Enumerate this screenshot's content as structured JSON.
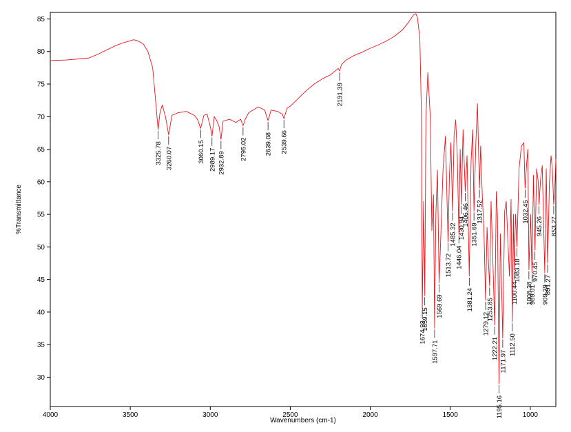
{
  "chart_data": {
    "type": "line",
    "xlabel": "Wavenumbers (cm-1)",
    "ylabel": "%Transmittance",
    "xlim": [
      4000,
      840
    ],
    "x_reversed": true,
    "ylim": [
      25.5,
      86
    ],
    "grid": false,
    "line_color": "#e8141b",
    "xticks": [
      "4000",
      "3500",
      "3000",
      "2500",
      "2000",
      "1500",
      "1000"
    ],
    "xtick_values": [
      4000,
      3500,
      3000,
      2500,
      2000,
      1500,
      1000
    ],
    "yticks": [
      "30",
      "35",
      "40",
      "45",
      "50",
      "55",
      "60",
      "65",
      "70",
      "75",
      "80",
      "85"
    ],
    "ytick_values": [
      30,
      35,
      40,
      45,
      50,
      55,
      60,
      65,
      70,
      75,
      80,
      85
    ],
    "spectrum": {
      "x": [
        4000,
        3900,
        3800,
        3760,
        3700,
        3650,
        3600,
        3550,
        3520,
        3480,
        3460,
        3420,
        3390,
        3360,
        3340,
        3325.78,
        3315,
        3300,
        3280,
        3260.07,
        3240,
        3200,
        3150,
        3100,
        3080,
        3060.15,
        3040,
        3020,
        3000,
        2989.17,
        2975,
        2960,
        2945,
        2932.89,
        2920,
        2880,
        2840,
        2810,
        2795.02,
        2780,
        2760,
        2700,
        2660,
        2639.08,
        2620,
        2580,
        2550,
        2539.66,
        2520,
        2500,
        2450,
        2400,
        2350,
        2300,
        2250,
        2200,
        2191.39,
        2180,
        2150,
        2100,
        2050,
        2000,
        1950,
        1900,
        1850,
        1800,
        1760,
        1730,
        1715,
        1705,
        1690,
        1680,
        1674.93,
        1666,
        1659.15,
        1652,
        1640,
        1625,
        1615,
        1605,
        1597.71,
        1590,
        1580,
        1569.69,
        1560,
        1545,
        1530,
        1513.72,
        1505,
        1496,
        1485.32,
        1476,
        1466,
        1456,
        1446.04,
        1438,
        1430.94,
        1420,
        1406.46,
        1395,
        1381.24,
        1370,
        1360,
        1351.69,
        1340,
        1330,
        1317.52,
        1310,
        1300,
        1290,
        1279.12,
        1270,
        1262,
        1253.85,
        1245,
        1235,
        1222.21,
        1212,
        1205,
        1195.16,
        1187,
        1180,
        1171.97,
        1160,
        1150,
        1140,
        1130,
        1120,
        1112.5,
        1105,
        1100.44,
        1092,
        1083.18,
        1070,
        1055,
        1040,
        1032.45,
        1022,
        1015,
        1008.38,
        998,
        989.01,
        980,
        970.45,
        960,
        950,
        945.26,
        935,
        925,
        909.29,
        900,
        891.27,
        880,
        870,
        862,
        853.27,
        845,
        840
      ],
      "y": [
        78.6,
        78.7,
        78.9,
        79.0,
        79.6,
        80.2,
        80.8,
        81.3,
        81.5,
        81.8,
        81.7,
        81.2,
        80.0,
        77.5,
        72.0,
        68.0,
        70.5,
        71.8,
        70.0,
        67.2,
        70.2,
        70.6,
        70.8,
        70.2,
        69.6,
        68.2,
        70.2,
        70.4,
        68.5,
        67.0,
        70.0,
        69.4,
        68.5,
        66.5,
        69.3,
        69.6,
        69.1,
        69.6,
        68.6,
        69.7,
        70.6,
        71.5,
        71.0,
        69.4,
        71.0,
        70.8,
        70.4,
        69.7,
        71.3,
        71.6,
        72.8,
        74.0,
        75.0,
        75.8,
        76.4,
        77.4,
        77.0,
        78.0,
        78.7,
        79.4,
        79.9,
        80.5,
        81.0,
        81.6,
        82.3,
        83.3,
        84.5,
        85.6,
        85.8,
        85.2,
        82.0,
        70.0,
        40.5,
        57.0,
        42.5,
        70.0,
        76.8,
        70.0,
        52.5,
        58.0,
        37.5,
        55.0,
        61.8,
        44.5,
        51.0,
        62.0,
        67.0,
        50.8,
        61.0,
        66.0,
        55.5,
        67.2,
        69.5,
        64.0,
        52.0,
        65.0,
        56.5,
        68.0,
        58.5,
        64.0,
        45.5,
        63.0,
        68.0,
        55.5,
        66.0,
        72.0,
        59.0,
        65.5,
        58.0,
        53.0,
        41.8,
        53.0,
        48.0,
        44.0,
        57.0,
        49.0,
        38.0,
        58.5,
        55.0,
        29.0,
        52.0,
        45.0,
        36.0,
        55.5,
        57.0,
        51.0,
        45.5,
        57.3,
        38.5,
        55.0,
        46.5,
        55.0,
        50.0,
        62.0,
        65.5,
        66.0,
        59.0,
        63.0,
        65.0,
        46.5,
        55.0,
        46.0,
        61.0,
        49.5,
        62.0,
        60.0,
        56.5,
        60.5,
        62.5,
        46.0,
        62.0,
        47.5,
        60.0,
        64.0,
        62.0,
        56.5,
        60.0,
        63.5
      ]
    },
    "peaks": [
      {
        "label": "3325.78",
        "x": 3325.78,
        "y": 68.0
      },
      {
        "label": "3260.07",
        "x": 3260.07,
        "y": 67.2
      },
      {
        "label": "3060.15",
        "x": 3060.15,
        "y": 68.2
      },
      {
        "label": "2989.17",
        "x": 2989.17,
        "y": 67.0
      },
      {
        "label": "2932.89",
        "x": 2932.89,
        "y": 66.5
      },
      {
        "label": "2795.02",
        "x": 2795.02,
        "y": 68.6
      },
      {
        "label": "2639.08",
        "x": 2639.08,
        "y": 69.4
      },
      {
        "label": "2539.66",
        "x": 2539.66,
        "y": 69.7
      },
      {
        "label": "2191.39",
        "x": 2191.39,
        "y": 77.0
      },
      {
        "label": "1674.93",
        "x": 1674.93,
        "y": 40.5
      },
      {
        "label": "1659.15",
        "x": 1659.15,
        "y": 42.5
      },
      {
        "label": "1597.71",
        "x": 1597.71,
        "y": 37.5
      },
      {
        "label": "1569.69",
        "x": 1569.69,
        "y": 44.5
      },
      {
        "label": "1513.72",
        "x": 1513.72,
        "y": 50.8
      },
      {
        "label": "1485.32",
        "x": 1485.32,
        "y": 55.5
      },
      {
        "label": "1446.04",
        "x": 1446.04,
        "y": 52.0
      },
      {
        "label": "1430.94",
        "x": 1430.94,
        "y": 56.5
      },
      {
        "label": "1406.46",
        "x": 1406.46,
        "y": 58.5
      },
      {
        "label": "1381.24",
        "x": 1381.24,
        "y": 45.5
      },
      {
        "label": "1351.69",
        "x": 1351.69,
        "y": 55.5
      },
      {
        "label": "1317.52",
        "x": 1317.52,
        "y": 59.0
      },
      {
        "label": "1279.12",
        "x": 1279.12,
        "y": 41.8
      },
      {
        "label": "1253.85",
        "x": 1253.85,
        "y": 44.0
      },
      {
        "label": "1222.21",
        "x": 1222.21,
        "y": 38.0
      },
      {
        "label": "1195.16",
        "x": 1195.16,
        "y": 29.0
      },
      {
        "label": "1171.97",
        "x": 1171.97,
        "y": 36.0
      },
      {
        "label": "1112.50",
        "x": 1112.5,
        "y": 38.5
      },
      {
        "label": "1100.44",
        "x": 1100.44,
        "y": 46.5
      },
      {
        "label": "1083.18",
        "x": 1083.18,
        "y": 50.0
      },
      {
        "label": "1032.45",
        "x": 1032.45,
        "y": 59.0
      },
      {
        "label": "1008.38",
        "x": 1008.38,
        "y": 46.5
      },
      {
        "label": "989.01",
        "x": 989.01,
        "y": 46.0
      },
      {
        "label": "970.45",
        "x": 970.45,
        "y": 49.5
      },
      {
        "label": "945.26",
        "x": 945.26,
        "y": 56.5
      },
      {
        "label": "909.29",
        "x": 909.29,
        "y": 46.0
      },
      {
        "label": "891.27",
        "x": 891.27,
        "y": 47.5
      },
      {
        "label": "853.27",
        "x": 853.27,
        "y": 56.5
      }
    ]
  }
}
